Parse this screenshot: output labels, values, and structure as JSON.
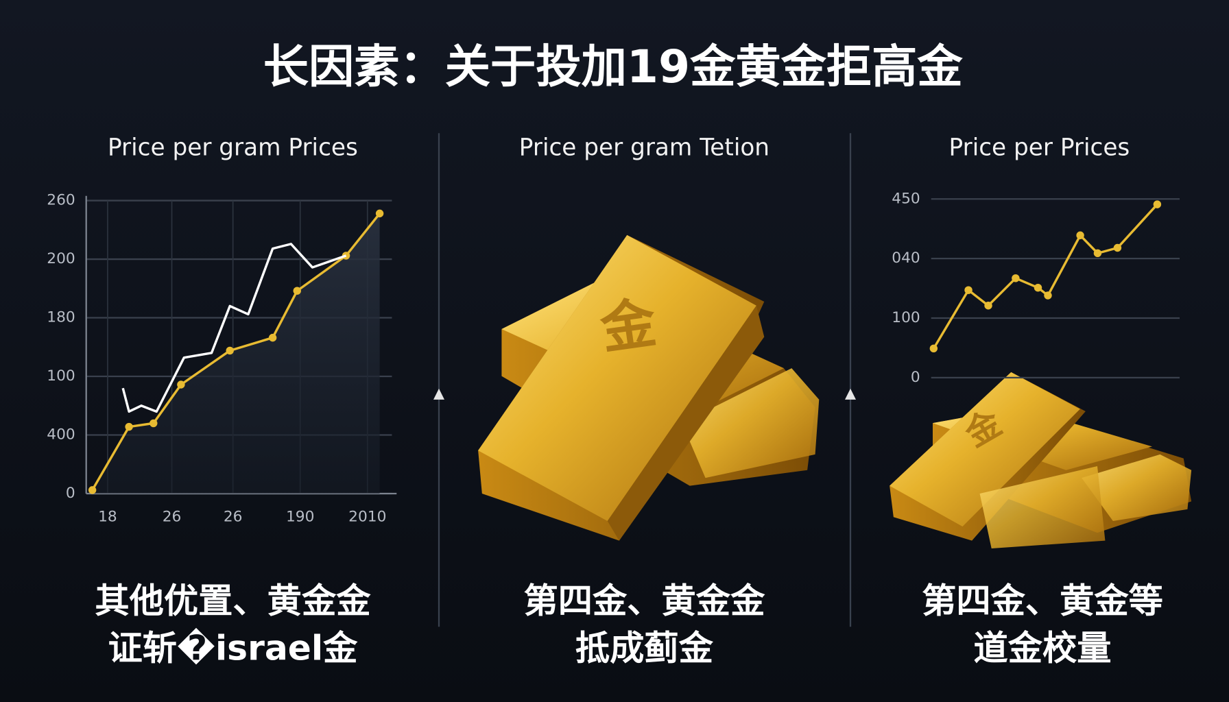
{
  "title": "长因素：关于投加19金黄金拒高金",
  "panels": [
    {
      "heading": "Price per gram Prices",
      "caption": [
        "其他优置、黄金金",
        "证斩�israel金"
      ]
    },
    {
      "heading": "Price per gram Tetion",
      "caption": [
        "第四金、黄金金",
        "抵成蓟金"
      ],
      "bar_label": "金"
    },
    {
      "heading": "Price per Prices",
      "caption": [
        "第四金、黄金等",
        "道金校量"
      ],
      "bar_label": "金"
    }
  ],
  "chart_data": [
    {
      "type": "line",
      "grid": true,
      "xlim": [
        0,
        100
      ],
      "ylim": [
        0,
        250
      ],
      "xticks": [
        {
          "value": 7,
          "label": "18"
        },
        {
          "value": 28,
          "label": "26"
        },
        {
          "value": 48,
          "label": "26"
        },
        {
          "value": 70,
          "label": "190"
        },
        {
          "value": 92,
          "label": "2010"
        }
      ],
      "yticks": [
        0,
        {
          "value": 50,
          "label": "400"
        },
        100,
        {
          "value": 150,
          "label": "180"
        },
        200,
        {
          "value": 250,
          "label": "260"
        }
      ],
      "series": [
        {
          "color": "#e8bb32",
          "x": [
            2,
            14,
            22,
            31,
            47,
            61,
            69,
            85,
            96
          ],
          "values": [
            3,
            57,
            60,
            93,
            122,
            133,
            173,
            203,
            239
          ]
        },
        {
          "color": "#ffffff",
          "x": [
            12,
            14,
            18,
            23,
            32,
            41,
            47,
            53,
            61,
            67,
            74,
            85
          ],
          "values": [
            90,
            70,
            75,
            70,
            116,
            120,
            160,
            153,
            209,
            213,
            193,
            203
          ]
        }
      ]
    },
    {
      "type": "line",
      "grid": true,
      "xlim": [
        0,
        100
      ],
      "ylim": [
        0,
        300
      ],
      "yticks": [
        0,
        100,
        {
          "value": 200,
          "label": "040"
        },
        {
          "value": 300,
          "label": "450"
        }
      ],
      "series": [
        {
          "color": "#e8bb32",
          "x": [
            1,
            15,
            23,
            34,
            43,
            47,
            60,
            67,
            75,
            91
          ],
          "values": [
            49,
            147,
            121,
            167,
            151,
            138,
            239,
            209,
            218,
            291
          ]
        }
      ]
    }
  ]
}
